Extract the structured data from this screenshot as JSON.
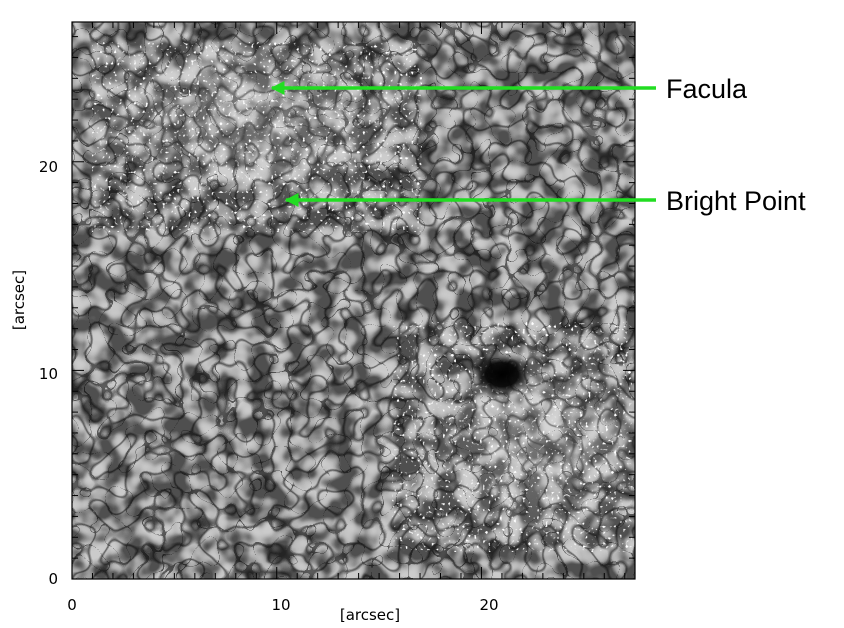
{
  "figure": {
    "x_axis": {
      "label": "[arcsec]",
      "ticks": [
        "0",
        "10",
        "20"
      ],
      "tick_values": [
        0,
        10,
        20
      ],
      "range": [
        0,
        27.5
      ]
    },
    "y_axis": {
      "label": "[arcsec]",
      "ticks": [
        "0",
        "10",
        "20"
      ],
      "tick_values": [
        0,
        10,
        20
      ],
      "range": [
        0,
        26.7
      ]
    },
    "annotations": [
      {
        "label": "Facula",
        "target_arcsec": [
          9.6,
          23.8
        ],
        "arrow_color": "#22dd22"
      },
      {
        "label": "Bright Point",
        "target_arcsec": [
          10.2,
          18.5
        ],
        "arrow_color": "#22dd22"
      }
    ],
    "features": {
      "pore_arcsec": [
        21.0,
        9.8
      ]
    }
  }
}
